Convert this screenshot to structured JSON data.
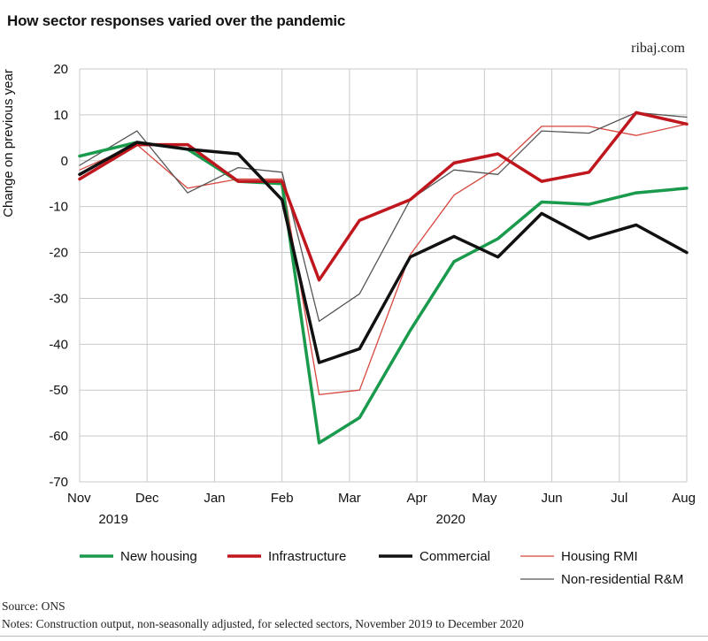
{
  "title": "How sector responses varied over the pandemic",
  "brand": "ribaj.com",
  "source": "Source: ONS",
  "notes": "Notes: Construction output, non-seasonally adjusted, for selected sectors, November 2019 to December 2020",
  "chart_data": {
    "type": "line",
    "ylabel": "Change on previous year",
    "ylim": [
      -70,
      20
    ],
    "yticks": [
      20,
      10,
      0,
      -10,
      -20,
      -30,
      -40,
      -50,
      -60,
      -70
    ],
    "categories": [
      "Nov",
      "Dec",
      "Jan",
      "Feb",
      "Mar",
      "Apr",
      "May",
      "Jun",
      "Jul",
      "Aug"
    ],
    "year_labels": [
      {
        "label": "2019",
        "at": 0.5
      },
      {
        "label": "2020",
        "at": 5.5
      }
    ],
    "grid": true,
    "legend_position": "bottom",
    "series": [
      {
        "name": "New housing",
        "color": "#1a9a4c",
        "width": 3.5,
        "points": [
          [
            0,
            1
          ],
          [
            0.85,
            4
          ],
          [
            1.6,
            2.5
          ],
          [
            2.35,
            -4.5
          ],
          [
            3.0,
            -5
          ],
          [
            3.55,
            -61.5
          ],
          [
            4.15,
            -56
          ],
          [
            4.9,
            -37
          ],
          [
            5.55,
            -22
          ],
          [
            6.2,
            -17
          ],
          [
            6.85,
            -9
          ],
          [
            7.55,
            -9.5
          ],
          [
            8.25,
            -7
          ],
          [
            9.0,
            -6
          ]
        ]
      },
      {
        "name": "Infrastructure",
        "color": "#c0161d",
        "width": 3.5,
        "points": [
          [
            0,
            -4
          ],
          [
            0.85,
            3.5
          ],
          [
            1.6,
            3.5
          ],
          [
            2.35,
            -4.5
          ],
          [
            3.0,
            -4.5
          ],
          [
            3.55,
            -26
          ],
          [
            4.15,
            -13
          ],
          [
            4.9,
            -8.5
          ],
          [
            5.55,
            -0.5
          ],
          [
            6.2,
            1.5
          ],
          [
            6.85,
            -4.5
          ],
          [
            7.55,
            -2.5
          ],
          [
            8.25,
            10.5
          ],
          [
            9.0,
            8
          ]
        ]
      },
      {
        "name": "Commercial",
        "color": "#111111",
        "width": 3.5,
        "points": [
          [
            0,
            -3
          ],
          [
            0.85,
            4
          ],
          [
            1.6,
            2.5
          ],
          [
            2.35,
            1.5
          ],
          [
            3.0,
            -8.5
          ],
          [
            3.55,
            -44
          ],
          [
            4.15,
            -41
          ],
          [
            4.9,
            -21
          ],
          [
            5.55,
            -16.5
          ],
          [
            6.2,
            -21
          ],
          [
            6.85,
            -11.5
          ],
          [
            7.55,
            -17
          ],
          [
            8.25,
            -14
          ],
          [
            9.0,
            -20
          ]
        ]
      },
      {
        "name": "Housing RMI",
        "color": "#d8473f",
        "width": 1.3,
        "points": [
          [
            0,
            -2
          ],
          [
            0.85,
            3.5
          ],
          [
            1.6,
            -6
          ],
          [
            2.35,
            -4
          ],
          [
            3.0,
            -4
          ],
          [
            3.55,
            -51
          ],
          [
            4.15,
            -50
          ],
          [
            4.9,
            -20.5
          ],
          [
            5.55,
            -7.5
          ],
          [
            6.2,
            -1.5
          ],
          [
            6.85,
            7.5
          ],
          [
            7.55,
            7.5
          ],
          [
            8.25,
            5.5
          ],
          [
            9.0,
            8
          ]
        ]
      },
      {
        "name": "Non-residential R&M",
        "color": "#555555",
        "width": 1.3,
        "points": [
          [
            0,
            -1
          ],
          [
            0.85,
            6.5
          ],
          [
            1.6,
            -7
          ],
          [
            2.35,
            -1.5
          ],
          [
            3.0,
            -2.5
          ],
          [
            3.55,
            -35
          ],
          [
            4.15,
            -29
          ],
          [
            4.9,
            -8.5
          ],
          [
            5.55,
            -2
          ],
          [
            6.2,
            -3
          ],
          [
            6.85,
            6.5
          ],
          [
            7.55,
            6
          ],
          [
            8.25,
            10.5
          ],
          [
            9.0,
            9.5
          ]
        ]
      }
    ]
  }
}
